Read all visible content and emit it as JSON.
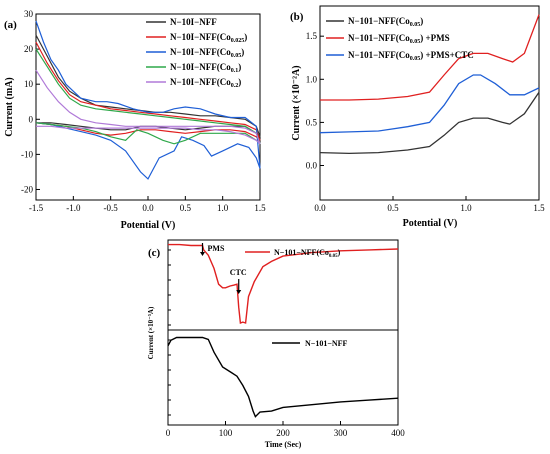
{
  "chart_data": [
    {
      "panel": "(a)",
      "type": "line",
      "xlabel": "Potential (V)",
      "ylabel": "Current (mA)",
      "xlim": [
        -1.5,
        1.5
      ],
      "ylim": [
        -23,
        30
      ],
      "xticks": [
        "-1.5",
        "-1.0",
        "-0.5",
        "0.0",
        "0.5",
        "1.0",
        "1.5"
      ],
      "yticks": [
        "-20",
        "-10",
        "0",
        "10",
        "20",
        "30"
      ],
      "legend_position": "top-right",
      "series": [
        {
          "name": "N−10I−NFF",
          "color": "#333333",
          "x": [
            -1.5,
            -1.35,
            -1.2,
            -1.05,
            -0.9,
            -0.7,
            -0.5,
            -0.3,
            -0.1,
            0.1,
            0.3,
            0.5,
            0.7,
            0.9,
            1.1,
            1.3,
            1.45,
            1.5,
            1.45,
            1.3,
            1.1,
            0.9,
            0.7,
            0.5,
            0.3,
            0.1,
            -0.1,
            -0.3,
            -0.5,
            -0.7,
            -0.9,
            -1.1,
            -1.3,
            -1.5
          ],
          "y": [
            24,
            18,
            12,
            8,
            6,
            4,
            3.5,
            3,
            2.5,
            2,
            2,
            1.5,
            1,
            1,
            0.5,
            0,
            -2,
            -5,
            -4,
            -2,
            -2,
            -2,
            -2.5,
            -3,
            -2.5,
            -2,
            -2,
            -3,
            -3,
            -2.5,
            -2,
            -1.5,
            -1,
            -1
          ]
        },
        {
          "name": "N−10I−NFF(Co0.025)",
          "color": "#e02020",
          "x": [
            -1.5,
            -1.35,
            -1.2,
            -1.05,
            -0.9,
            -0.7,
            -0.5,
            -0.3,
            -0.1,
            0.1,
            0.3,
            0.5,
            0.7,
            0.9,
            1.1,
            1.3,
            1.45,
            1.5,
            1.45,
            1.3,
            1.1,
            0.9,
            0.7,
            0.5,
            0.3,
            0.1,
            -0.1,
            -0.3,
            -0.5,
            -0.7,
            -0.9,
            -1.1,
            -1.3,
            -1.5
          ],
          "y": [
            22,
            16,
            11,
            7,
            5,
            4,
            3,
            2.5,
            2,
            1.5,
            1,
            0.5,
            0,
            -0.5,
            -1,
            -1.5,
            -3,
            -6,
            -5,
            -3.5,
            -3,
            -3,
            -3.5,
            -4,
            -3.5,
            -3,
            -3,
            -4,
            -4.5,
            -4,
            -3,
            -2,
            -1.5,
            -1
          ]
        },
        {
          "name": "N−10I−NFF(Co0.05)",
          "color": "#1f5fd6",
          "x": [
            -1.5,
            -1.4,
            -1.3,
            -1.2,
            -1.1,
            -1.0,
            -0.9,
            -0.7,
            -0.55,
            -0.4,
            -0.2,
            0.0,
            0.2,
            0.35,
            0.5,
            0.7,
            0.9,
            1.1,
            1.3,
            1.45,
            1.5,
            1.45,
            1.35,
            1.2,
            1.0,
            0.85,
            0.75,
            0.6,
            0.45,
            0.35,
            0.15,
            0.0,
            -0.1,
            -0.3,
            -0.5,
            -0.7,
            -0.9,
            -1.1,
            -1.3,
            -1.5
          ],
          "y": [
            28,
            22,
            17,
            14,
            10,
            8,
            6,
            5,
            5,
            4.5,
            3,
            2,
            2,
            3,
            3.5,
            3,
            1.5,
            0.5,
            0.5,
            -2,
            -14,
            -11,
            -8,
            -7,
            -9,
            -10.5,
            -7.5,
            -6,
            -5,
            -9,
            -11,
            -17,
            -15,
            -9,
            -6,
            -4.5,
            -3.5,
            -2.5,
            -1.5,
            -1
          ]
        },
        {
          "name": "N−10I−NFF(Co0.1)",
          "color": "#2fa84a",
          "x": [
            -1.5,
            -1.35,
            -1.2,
            -1.05,
            -0.9,
            -0.7,
            -0.5,
            -0.3,
            -0.1,
            0.1,
            0.3,
            0.5,
            0.7,
            0.9,
            1.1,
            1.3,
            1.45,
            1.5,
            1.45,
            1.3,
            1.1,
            0.9,
            0.7,
            0.5,
            0.35,
            0.2,
            0.0,
            -0.15,
            -0.3,
            -0.5,
            -0.7,
            -0.9,
            -1.1,
            -1.3,
            -1.5
          ],
          "y": [
            20,
            15,
            10,
            6,
            4,
            3,
            2.5,
            2,
            1.5,
            1,
            0.5,
            0,
            -0.5,
            -1,
            -1.5,
            -2,
            -4,
            -7,
            -6,
            -4,
            -4,
            -4,
            -4,
            -6,
            -7,
            -6,
            -4,
            -3,
            -6,
            -5,
            -3.5,
            -2.5,
            -2,
            -1.5,
            -1
          ]
        },
        {
          "name": "N−10I−NFF(Co0.2)",
          "color": "#b07ad8",
          "x": [
            -1.5,
            -1.35,
            -1.2,
            -1.05,
            -0.9,
            -0.7,
            -0.5,
            -0.3,
            -0.1,
            0.1,
            0.3,
            0.5,
            0.7,
            0.9,
            1.1,
            1.3,
            1.45,
            1.5,
            1.45,
            1.3,
            1.1,
            0.9,
            0.7,
            0.5,
            0.3,
            0.1,
            -0.1,
            -0.3,
            -0.5,
            -0.7,
            -0.9,
            -1.1,
            -1.3,
            -1.5
          ],
          "y": [
            14,
            9,
            5,
            2,
            0,
            -1,
            -1.5,
            -2,
            -2,
            -2,
            -2,
            -2,
            -2,
            -2,
            -2,
            -2.5,
            -4,
            -7,
            -6,
            -4.5,
            -3.5,
            -3,
            -3,
            -2.5,
            -2.5,
            -2.5,
            -2.5,
            -2.5,
            -2.5,
            -2.5,
            -2.5,
            -2.5,
            -2,
            -2
          ]
        }
      ]
    },
    {
      "panel": "(b)",
      "type": "line",
      "xlabel": "Potential (V)",
      "ylabel": "Current (×10⁻²A)",
      "xlim": [
        0.0,
        1.5
      ],
      "ylim": [
        -0.4,
        1.85
      ],
      "xticks": [
        "0.0",
        "0.5",
        "1.0",
        "1.5"
      ],
      "yticks": [
        "0.0",
        "0.5",
        "1.0",
        "1.5"
      ],
      "legend_position": "top-left",
      "series": [
        {
          "name": "N−101−NFF(Co0.05)",
          "color": "#333333",
          "x": [
            0.0,
            0.2,
            0.4,
            0.6,
            0.75,
            0.85,
            0.95,
            1.05,
            1.15,
            1.25,
            1.3,
            1.4,
            1.5
          ],
          "y": [
            0.15,
            0.14,
            0.15,
            0.18,
            0.22,
            0.35,
            0.5,
            0.55,
            0.55,
            0.5,
            0.48,
            0.6,
            0.85
          ]
        },
        {
          "name": "N−101−NFF(Co0.05) +PMS",
          "color": "#e02020",
          "x": [
            0.0,
            0.2,
            0.4,
            0.6,
            0.75,
            0.85,
            0.95,
            1.05,
            1.15,
            1.25,
            1.32,
            1.4,
            1.5
          ],
          "y": [
            0.76,
            0.76,
            0.77,
            0.8,
            0.85,
            1.05,
            1.24,
            1.3,
            1.3,
            1.24,
            1.2,
            1.3,
            1.75
          ]
        },
        {
          "name": "N−101−NFF(Co0.05) +PMS+CTC",
          "color": "#1f5fd6",
          "x": [
            0.0,
            0.2,
            0.4,
            0.6,
            0.75,
            0.85,
            0.95,
            1.05,
            1.1,
            1.2,
            1.3,
            1.4,
            1.5
          ],
          "y": [
            0.38,
            0.39,
            0.4,
            0.45,
            0.5,
            0.7,
            0.95,
            1.05,
            1.05,
            0.95,
            0.82,
            0.82,
            0.9
          ]
        }
      ]
    },
    {
      "panel": "(c)",
      "type": "line",
      "xlabel": "Time (Sec)",
      "ylabel": "Current (×10⁻⁵A)",
      "xlim": [
        0,
        400
      ],
      "xticks": [
        "0",
        "100",
        "200",
        "300",
        "400"
      ],
      "annotations": [
        "PMS",
        "CTC"
      ],
      "series": [
        {
          "name": "N−101−NFF(Co0.05)",
          "color": "#e02020",
          "x": [
            0,
            20,
            40,
            55,
            60,
            62,
            70,
            80,
            88,
            95,
            100,
            108,
            115,
            120,
            123,
            126,
            130,
            135,
            140,
            150,
            165,
            180,
            200,
            250,
            300,
            350,
            400
          ],
          "y": [
            97,
            97,
            96,
            96,
            96,
            91,
            85,
            70,
            52,
            48,
            48,
            50,
            51,
            52,
            26,
            8,
            9,
            8,
            38,
            55,
            72,
            78,
            84,
            88,
            90,
            91,
            92
          ]
        },
        {
          "name": "N−101−NFF",
          "color": "#000000",
          "x": [
            0,
            5,
            15,
            30,
            60,
            70,
            80,
            95,
            110,
            120,
            130,
            140,
            148,
            152,
            160,
            180,
            200,
            250,
            300,
            350,
            400
          ],
          "y": [
            85,
            91,
            94,
            94,
            94,
            92,
            78,
            62,
            56,
            52,
            42,
            30,
            14,
            8,
            13,
            14,
            18,
            21,
            24,
            26,
            28
          ]
        }
      ]
    }
  ]
}
